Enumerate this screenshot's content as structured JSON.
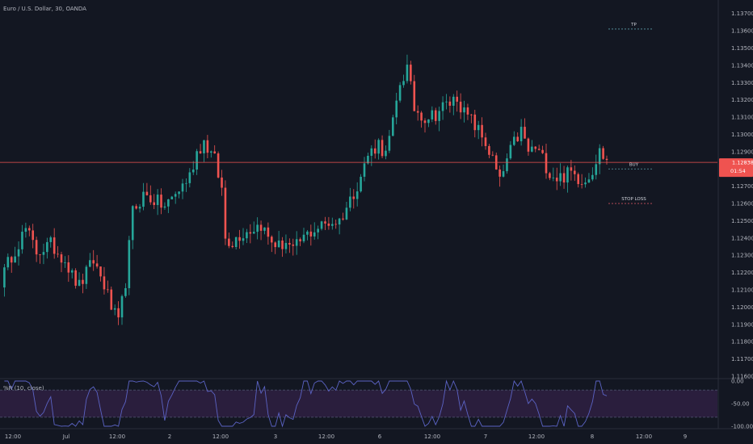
{
  "chart_data": [
    {
      "type": "candlestick",
      "title": "Euro / U.S. Dollar, 30, OANDA",
      "x_tick_labels": [
        "12:00",
        "Jul",
        "12:00",
        "2",
        "12:00",
        "3",
        "12:00",
        "6",
        "12:00",
        "7",
        "12:00",
        "8",
        "12:00",
        "9"
      ],
      "y_tick_labels": [
        "1.13700",
        "1.13600",
        "1.13500",
        "1.13400",
        "1.13300",
        "1.13200",
        "1.13100",
        "1.13000",
        "1.12900",
        "1.12800",
        "1.12700",
        "1.12600",
        "1.12500",
        "1.12400",
        "1.12300",
        "1.12200",
        "1.12100",
        "1.12000",
        "1.11900",
        "1.11800",
        "1.11700",
        "1.11600"
      ],
      "ylim": [
        1.116,
        1.1375
      ],
      "price_path": [
        [
          0,
          1.1215
        ],
        [
          3,
          1.123
        ],
        [
          7,
          1.1245
        ],
        [
          10,
          1.1232
        ],
        [
          14,
          1.1236
        ],
        [
          18,
          1.1228
        ],
        [
          20,
          1.1218
        ],
        [
          22,
          1.1212
        ],
        [
          26,
          1.1227
        ],
        [
          29,
          1.1213
        ],
        [
          31,
          1.12
        ],
        [
          33,
          1.119
        ],
        [
          35,
          1.1215
        ],
        [
          37,
          1.1255
        ],
        [
          40,
          1.1265
        ],
        [
          43,
          1.1262
        ],
        [
          46,
          1.1258
        ],
        [
          50,
          1.1268
        ],
        [
          53,
          1.1276
        ],
        [
          55,
          1.129
        ],
        [
          57,
          1.1296
        ],
        [
          60,
          1.1285
        ],
        [
          62,
          1.1268
        ],
        [
          63,
          1.124
        ],
        [
          65,
          1.1238
        ],
        [
          67,
          1.1242
        ],
        [
          70,
          1.1245
        ],
        [
          73,
          1.1248
        ],
        [
          75,
          1.124
        ],
        [
          78,
          1.1235
        ],
        [
          80,
          1.1238
        ],
        [
          82,
          1.1232
        ],
        [
          84,
          1.1238
        ],
        [
          86,
          1.1242
        ],
        [
          88,
          1.1245
        ],
        [
          90,
          1.1247
        ],
        [
          92,
          1.1249
        ],
        [
          95,
          1.125
        ],
        [
          98,
          1.1262
        ],
        [
          101,
          1.1276
        ],
        [
          103,
          1.1288
        ],
        [
          106,
          1.1295
        ],
        [
          108,
          1.1288
        ],
        [
          110,
          1.1306
        ],
        [
          112,
          1.133
        ],
        [
          114,
          1.1338
        ],
        [
          116,
          1.1315
        ],
        [
          119,
          1.131
        ],
        [
          122,
          1.1312
        ],
        [
          124,
          1.1316
        ],
        [
          126,
          1.1318
        ],
        [
          128,
          1.1322
        ],
        [
          130,
          1.1312
        ],
        [
          132,
          1.1308
        ],
        [
          134,
          1.1302
        ],
        [
          136,
          1.1295
        ],
        [
          138,
          1.1285
        ],
        [
          140,
          1.1272
        ],
        [
          142,
          1.1285
        ],
        [
          144,
          1.1295
        ],
        [
          146,
          1.1302
        ],
        [
          148,
          1.129
        ],
        [
          150,
          1.1292
        ],
        [
          152,
          1.1286
        ],
        [
          154,
          1.1278
        ],
        [
          156,
          1.1275
        ],
        [
          158,
          1.1276
        ],
        [
          160,
          1.1278
        ],
        [
          162,
          1.1275
        ],
        [
          164,
          1.1274
        ],
        [
          166,
          1.128
        ],
        [
          168,
          1.129
        ],
        [
          170,
          1.1285
        ]
      ],
      "last_price": "1.12838",
      "countdown": "01:54",
      "horizontal_line_price": 1.12838,
      "position_markers": [
        {
          "label": "TP",
          "price": 1.1361,
          "color": "#5b9aa6"
        },
        {
          "label": "BUY",
          "price": 1.128,
          "color": "#5b9aa6"
        },
        {
          "label": "STOP LOSS",
          "price": 1.126,
          "color": "#c6525c"
        }
      ],
      "colors": {
        "background": "#131722",
        "up": "#26a69a",
        "down": "#ef5350",
        "horizontal_line": "#ef5350",
        "badge_bg": "#ef5350"
      }
    },
    {
      "type": "line",
      "title": "%R (10, close)",
      "y_tick_labels": [
        "0.00",
        "-50.00",
        "-100.00"
      ],
      "ylim": [
        -100,
        0
      ],
      "band_upper": -20,
      "band_lower": -80,
      "series_color": "#5b63c4",
      "band_fill": "#2a1e3d",
      "band_line_color": "#4a4f6a"
    }
  ]
}
